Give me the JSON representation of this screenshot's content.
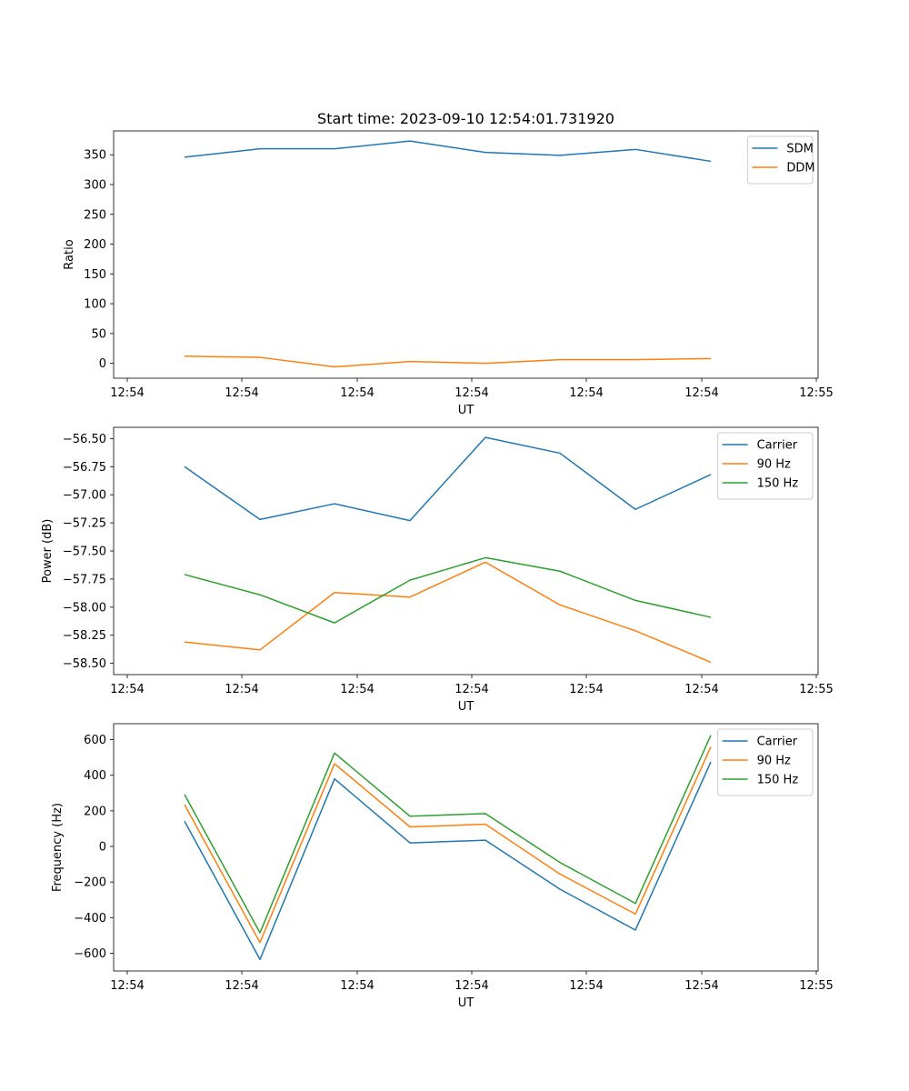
{
  "chart_data": [
    {
      "type": "line",
      "title": "Start time: 2023-09-10 12:54:01.731920",
      "xlabel": "UT",
      "ylabel": "Ratio",
      "x_tick_labels": [
        "12:54",
        "12:54",
        "12:54",
        "12:54",
        "12:54",
        "12:54",
        "12:54",
        "12:55"
      ],
      "x": [
        1,
        2,
        3,
        4,
        5,
        6,
        7,
        8
      ],
      "xlim": [
        0.19,
        9.24
      ],
      "ylim": [
        -25,
        390
      ],
      "yticks": [
        0,
        50,
        100,
        150,
        200,
        250,
        300,
        350
      ],
      "y_tick_labels": [
        "0",
        "50",
        "100",
        "150",
        "200",
        "250",
        "300",
        "350"
      ],
      "legend_position": "upper right",
      "series": [
        {
          "name": "SDM",
          "color": "#1f77b4",
          "values": [
            346,
            360,
            360,
            373,
            354,
            349,
            359,
            339
          ]
        },
        {
          "name": "DDM",
          "color": "#ff7f0e",
          "values": [
            12,
            10,
            -6,
            3,
            0,
            6,
            6,
            8
          ]
        }
      ]
    },
    {
      "type": "line",
      "xlabel": "UT",
      "ylabel": "Power (dB)",
      "x_tick_labels": [
        "12:54",
        "12:54",
        "12:54",
        "12:54",
        "12:54",
        "12:54",
        "12:54",
        "12:55"
      ],
      "x": [
        1,
        2,
        3,
        4,
        5,
        6,
        7,
        8
      ],
      "xlim": [
        0.19,
        9.24
      ],
      "ylim": [
        -58.6,
        -56.4
      ],
      "yticks": [
        -58.5,
        -58.25,
        -58.0,
        -57.75,
        -57.5,
        -57.25,
        -57.0,
        -56.75,
        -56.5
      ],
      "y_tick_labels": [
        "−58.50",
        "−58.25",
        "−58.00",
        "−57.75",
        "−57.50",
        "−57.25",
        "−57.00",
        "−56.75",
        "−56.50"
      ],
      "legend_position": "upper right",
      "series": [
        {
          "name": "Carrier",
          "color": "#1f77b4",
          "values": [
            -56.75,
            -57.22,
            -57.08,
            -57.23,
            -56.49,
            -56.63,
            -57.13,
            -56.82
          ]
        },
        {
          "name": "90 Hz",
          "color": "#ff7f0e",
          "values": [
            -58.31,
            -58.38,
            -57.87,
            -57.91,
            -57.6,
            -57.98,
            -58.21,
            -58.49
          ]
        },
        {
          "name": "150 Hz",
          "color": "#2ca02c",
          "values": [
            -57.71,
            -57.89,
            -58.14,
            -57.76,
            -57.56,
            -57.68,
            -57.94,
            -58.09
          ]
        }
      ]
    },
    {
      "type": "line",
      "xlabel": "UT",
      "ylabel": "Frequency (Hz)",
      "x_tick_labels": [
        "12:54",
        "12:54",
        "12:54",
        "12:54",
        "12:54",
        "12:54",
        "12:54",
        "12:55"
      ],
      "x": [
        1,
        2,
        3,
        4,
        5,
        6,
        7,
        8
      ],
      "xlim": [
        0.19,
        9.24
      ],
      "ylim": [
        -700,
        690
      ],
      "yticks": [
        -600,
        -400,
        -200,
        0,
        200,
        400,
        600
      ],
      "y_tick_labels": [
        "−600",
        "−400",
        "−200",
        "0",
        "200",
        "400",
        "600"
      ],
      "legend_position": "upper right",
      "series": [
        {
          "name": "Carrier",
          "color": "#1f77b4",
          "values": [
            142,
            -635,
            380,
            20,
            35,
            -240,
            -470,
            475
          ]
        },
        {
          "name": "90 Hz",
          "color": "#ff7f0e",
          "values": [
            235,
            -540,
            465,
            110,
            125,
            -155,
            -380,
            560
          ]
        },
        {
          "name": "150 Hz",
          "color": "#2ca02c",
          "values": [
            292,
            -485,
            525,
            170,
            185,
            -90,
            -320,
            625
          ]
        }
      ]
    }
  ]
}
